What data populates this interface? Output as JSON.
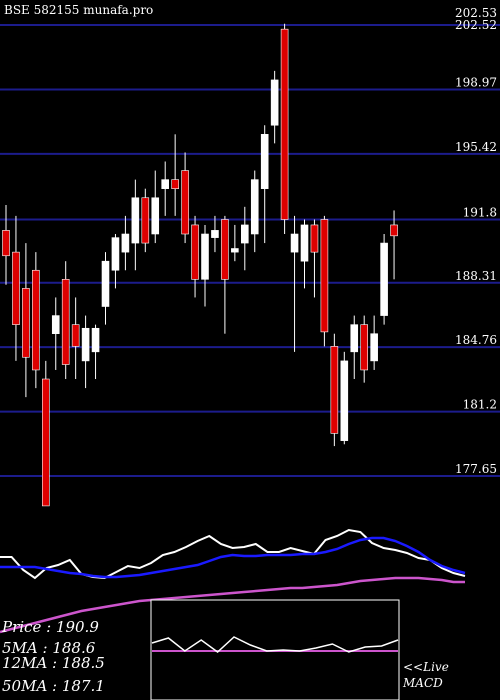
{
  "chart_data": {
    "type": "candlestick",
    "title": "BSE 582155 munafa.pro",
    "y_ticks": [
      "202.53",
      "202.52",
      "198.97",
      "195.42",
      "191.8",
      "188.31",
      "184.76",
      "181.2",
      "177.65"
    ],
    "ylim": [
      177.65,
      202.53
    ],
    "grid": true,
    "candles": [
      {
        "o": 191.2,
        "h": 192.6,
        "l": 188.2,
        "c": 189.8
      },
      {
        "o": 190.0,
        "h": 192.0,
        "l": 184.0,
        "c": 186.0
      },
      {
        "o": 188.0,
        "h": 190.5,
        "l": 182.0,
        "c": 184.2
      },
      {
        "o": 189.0,
        "h": 190.0,
        "l": 182.5,
        "c": 183.5
      },
      {
        "o": 183.0,
        "h": 184.0,
        "l": 176.0,
        "c": 176.0
      },
      {
        "o": 185.5,
        "h": 187.5,
        "l": 183.5,
        "c": 186.5
      },
      {
        "o": 188.5,
        "h": 189.5,
        "l": 183.0,
        "c": 183.8
      },
      {
        "o": 186.0,
        "h": 187.5,
        "l": 183.0,
        "c": 184.8
      },
      {
        "o": 184.0,
        "h": 186.5,
        "l": 182.5,
        "c": 185.8
      },
      {
        "o": 184.5,
        "h": 186.0,
        "l": 183.0,
        "c": 185.8
      },
      {
        "o": 187.0,
        "h": 190.0,
        "l": 186.0,
        "c": 189.5
      },
      {
        "o": 189.0,
        "h": 191.0,
        "l": 188.0,
        "c": 190.8
      },
      {
        "o": 190.0,
        "h": 192.0,
        "l": 189.0,
        "c": 191.0
      },
      {
        "o": 190.5,
        "h": 194.0,
        "l": 189.0,
        "c": 193.0
      },
      {
        "o": 193.0,
        "h": 193.5,
        "l": 190.0,
        "c": 190.5
      },
      {
        "o": 191.0,
        "h": 194.5,
        "l": 190.5,
        "c": 193.0
      },
      {
        "o": 193.5,
        "h": 195.0,
        "l": 192.0,
        "c": 194.0
      },
      {
        "o": 194.0,
        "h": 196.5,
        "l": 192.0,
        "c": 193.5
      },
      {
        "o": 194.5,
        "h": 195.5,
        "l": 190.5,
        "c": 191.0
      },
      {
        "o": 191.5,
        "h": 192.0,
        "l": 187.5,
        "c": 188.5
      },
      {
        "o": 188.5,
        "h": 191.5,
        "l": 187.0,
        "c": 191.0
      },
      {
        "o": 190.8,
        "h": 192.0,
        "l": 190.0,
        "c": 191.2
      },
      {
        "o": 191.8,
        "h": 192.0,
        "l": 185.5,
        "c": 188.5
      },
      {
        "o": 190.0,
        "h": 191.5,
        "l": 189.5,
        "c": 190.2
      },
      {
        "o": 190.5,
        "h": 192.5,
        "l": 189.0,
        "c": 191.5
      },
      {
        "o": 191.0,
        "h": 194.5,
        "l": 190.0,
        "c": 194.0
      },
      {
        "o": 193.5,
        "h": 197.0,
        "l": 190.5,
        "c": 196.5
      },
      {
        "o": 197.0,
        "h": 200.0,
        "l": 196.0,
        "c": 199.5
      },
      {
        "o": 202.3,
        "h": 202.6,
        "l": 191.0,
        "c": 191.8
      },
      {
        "o": 190.0,
        "h": 192.0,
        "l": 184.5,
        "c": 191.0
      },
      {
        "o": 189.5,
        "h": 191.8,
        "l": 188.0,
        "c": 191.5
      },
      {
        "o": 191.5,
        "h": 191.8,
        "l": 187.5,
        "c": 190.0
      },
      {
        "o": 191.8,
        "h": 192.0,
        "l": 184.8,
        "c": 185.6
      },
      {
        "o": 184.8,
        "h": 185.5,
        "l": 179.3,
        "c": 180.0
      },
      {
        "o": 179.6,
        "h": 184.5,
        "l": 179.4,
        "c": 184.0
      },
      {
        "o": 184.5,
        "h": 186.5,
        "l": 183.0,
        "c": 186.0
      },
      {
        "o": 186.0,
        "h": 186.5,
        "l": 182.8,
        "c": 183.5
      },
      {
        "o": 184.0,
        "h": 186.5,
        "l": 183.5,
        "c": 185.5
      },
      {
        "o": 186.5,
        "h": 191.0,
        "l": 186.0,
        "c": 190.5
      },
      {
        "o": 191.5,
        "h": 192.3,
        "l": 188.5,
        "c": 190.9
      }
    ],
    "ma_series": [
      {
        "color": "#ffffff",
        "values": [
          557,
          557,
          570,
          578,
          568,
          565,
          560,
          574,
          577,
          578,
          572,
          566,
          568,
          563,
          555,
          552,
          547,
          541,
          536,
          544,
          548,
          547,
          544,
          552,
          552,
          548,
          551,
          554,
          540,
          536,
          530,
          532,
          543,
          548,
          550,
          553,
          558,
          560,
          568,
          573,
          576
        ]
      },
      {
        "color": "#1a1aff",
        "values": [
          567,
          567,
          567,
          567,
          569,
          571,
          573,
          574,
          576,
          577,
          577,
          576,
          575,
          573,
          571,
          569,
          567,
          565,
          561,
          557,
          555,
          556,
          556,
          555,
          555,
          555,
          554,
          554,
          552,
          549,
          544,
          540,
          538,
          538,
          541,
          546,
          552,
          560,
          566,
          570,
          573
        ]
      },
      {
        "color": "#cc55cc",
        "values": [
          632,
          629,
          626,
          623,
          620,
          617,
          614,
          611,
          609,
          607,
          605,
          603,
          601,
          600,
          599,
          598,
          597,
          596,
          595,
          594,
          593,
          592,
          591,
          590,
          589,
          588,
          588,
          587,
          586,
          585,
          583,
          581,
          580,
          579,
          578,
          578,
          578,
          579,
          580,
          582,
          582
        ]
      }
    ],
    "macd_values": [
      643,
      638,
      651,
      640,
      652,
      637,
      645,
      651,
      650,
      651,
      648,
      644,
      652,
      647,
      646,
      640
    ]
  },
  "stats": {
    "price": "Price  : 190.9",
    "ma5": "5MA : 188.6",
    "ma12": "12MA : 188.5",
    "ma50": "50MA : 187.1"
  },
  "macd_label_live": "<<Live",
  "macd_label_name": "MACD"
}
